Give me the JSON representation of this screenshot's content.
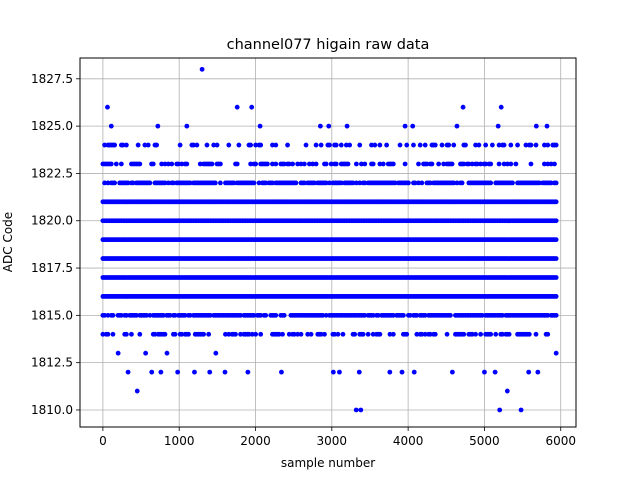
{
  "chart_data": {
    "type": "scatter",
    "title": "channel077 higain raw data",
    "xlabel": "sample number",
    "ylabel": "ADC Code",
    "xlim": [
      -300,
      6200
    ],
    "ylim": [
      1809.1,
      1828.6
    ],
    "x_ticks": [
      0,
      1000,
      2000,
      3000,
      4000,
      5000,
      6000
    ],
    "y_ticks": [
      1810.0,
      1812.5,
      1815.0,
      1817.5,
      1820.0,
      1822.5,
      1825.0,
      1827.5
    ],
    "x_tick_labels": [
      "0",
      "1000",
      "2000",
      "3000",
      "4000",
      "5000",
      "6000"
    ],
    "y_tick_labels": [
      "1810.0",
      "1812.5",
      "1815.0",
      "1817.5",
      "1820.0",
      "1822.5",
      "1825.0",
      "1827.5"
    ],
    "grid": true,
    "marker_color": "#0000ff",
    "series": [
      {
        "x_range": [
          0,
          5950
        ],
        "dense_levels": [
          1814,
          1815,
          1816,
          1817,
          1818,
          1819,
          1820,
          1821,
          1822,
          1823,
          1824
        ],
        "sparse_points": [
          {
            "x": 60,
            "y": 1826
          },
          {
            "x": 110,
            "y": 1825
          },
          {
            "x": 90,
            "y": 1824
          },
          {
            "x": 200,
            "y": 1813
          },
          {
            "x": 330,
            "y": 1812
          },
          {
            "x": 450,
            "y": 1811
          },
          {
            "x": 560,
            "y": 1813
          },
          {
            "x": 640,
            "y": 1812
          },
          {
            "x": 720,
            "y": 1825
          },
          {
            "x": 760,
            "y": 1812
          },
          {
            "x": 840,
            "y": 1813
          },
          {
            "x": 980,
            "y": 1812
          },
          {
            "x": 1100,
            "y": 1825
          },
          {
            "x": 1200,
            "y": 1812
          },
          {
            "x": 1300,
            "y": 1828
          },
          {
            "x": 1400,
            "y": 1812
          },
          {
            "x": 1480,
            "y": 1813
          },
          {
            "x": 1600,
            "y": 1812
          },
          {
            "x": 1760,
            "y": 1826
          },
          {
            "x": 1900,
            "y": 1812
          },
          {
            "x": 1950,
            "y": 1826
          },
          {
            "x": 2060,
            "y": 1825
          },
          {
            "x": 2340,
            "y": 1812
          },
          {
            "x": 2850,
            "y": 1825
          },
          {
            "x": 2960,
            "y": 1825
          },
          {
            "x": 3020,
            "y": 1812
          },
          {
            "x": 3100,
            "y": 1812
          },
          {
            "x": 3200,
            "y": 1825
          },
          {
            "x": 3320,
            "y": 1810
          },
          {
            "x": 3380,
            "y": 1810
          },
          {
            "x": 3360,
            "y": 1812
          },
          {
            "x": 3760,
            "y": 1812
          },
          {
            "x": 3960,
            "y": 1825
          },
          {
            "x": 4060,
            "y": 1825
          },
          {
            "x": 3920,
            "y": 1812
          },
          {
            "x": 4080,
            "y": 1812
          },
          {
            "x": 4580,
            "y": 1812
          },
          {
            "x": 4640,
            "y": 1825
          },
          {
            "x": 4720,
            "y": 1826
          },
          {
            "x": 5000,
            "y": 1812
          },
          {
            "x": 5140,
            "y": 1812
          },
          {
            "x": 5180,
            "y": 1825
          },
          {
            "x": 5200,
            "y": 1810
          },
          {
            "x": 5220,
            "y": 1826
          },
          {
            "x": 5300,
            "y": 1811
          },
          {
            "x": 5480,
            "y": 1810
          },
          {
            "x": 5580,
            "y": 1812
          },
          {
            "x": 5680,
            "y": 1825
          },
          {
            "x": 5700,
            "y": 1812
          },
          {
            "x": 5820,
            "y": 1825
          },
          {
            "x": 5940,
            "y": 1813
          }
        ]
      }
    ]
  }
}
